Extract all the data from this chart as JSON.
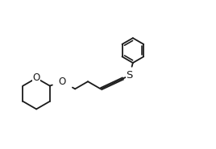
{
  "bg_color": "#ffffff",
  "line_color": "#1a1a1a",
  "line_width": 1.3,
  "label_S": "S",
  "label_O1": "O",
  "label_O2": "O",
  "font_size": 8.5,
  "xlim": [
    -5.8,
    3.2
  ],
  "ylim": [
    -2.0,
    2.5
  ]
}
